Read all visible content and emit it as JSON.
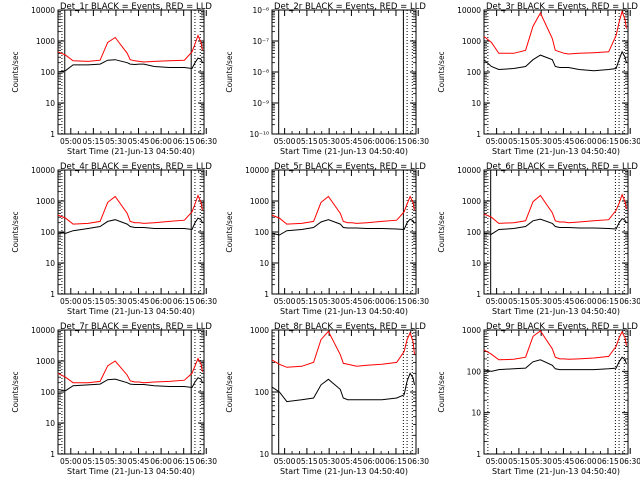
{
  "figure": {
    "xtick_labels": [
      "05:00",
      "05:15",
      "05:30",
      "05:45",
      "06:00",
      "06:15",
      "06:30"
    ],
    "xlabel": "Start Time (21-Jun-13 04:50:40)",
    "ylabel": "Counts/sec",
    "colors": {
      "events": "#000000",
      "lld": "#ff0000",
      "axes": "#000000",
      "background": "#ffffff"
    }
  },
  "chart_data": [
    {
      "type": "line",
      "title": "Det_1r BLACK = Events, RED = LLD",
      "yscale": "log",
      "ylim": [
        1,
        10000
      ],
      "ytick_labels": [
        "1",
        "10",
        "100",
        "1000",
        "10000"
      ],
      "x_minutes": [
        0,
        5,
        10,
        20,
        28,
        33,
        38,
        46,
        48,
        51,
        54,
        57,
        64,
        74,
        84,
        89,
        91,
        93,
        95,
        96
      ],
      "series": [
        {
          "key": "events",
          "color": "#000000",
          "values": [
            100,
            110,
            170,
            170,
            180,
            240,
            250,
            200,
            180,
            175,
            180,
            180,
            150,
            140,
            140,
            130,
            200,
            280,
            260,
            200
          ]
        },
        {
          "key": "lld",
          "color": "#ff0000",
          "values": [
            450,
            350,
            230,
            220,
            240,
            900,
            1300,
            400,
            250,
            230,
            220,
            210,
            220,
            230,
            240,
            450,
            800,
            1500,
            900,
            500
          ]
        }
      ],
      "vlines_solid": [
        4.5,
        88.5
      ],
      "vlines_dotted": [
        2.6,
        91,
        94.5
      ]
    },
    {
      "type": "line",
      "title": "Det_2r BLACK = Events, RED = LLD",
      "yscale": "log",
      "ylim": [
        1e-10,
        1e-06
      ],
      "ytick_labels": [
        "10⁻¹⁰",
        "10⁻⁹",
        "10⁻⁸",
        "10⁻⁷",
        "10⁻⁶"
      ],
      "x_minutes": [],
      "series": [],
      "vlines_solid": [
        4.5,
        88.5
      ],
      "vlines_dotted": [
        91,
        94.5
      ]
    },
    {
      "type": "line",
      "title": "Det_3r BLACK = Events, RED = LLD",
      "yscale": "log",
      "ylim": [
        1,
        10000
      ],
      "ytick_labels": [
        "1",
        "10",
        "100",
        "1000",
        "10000"
      ],
      "x_minutes": [
        0,
        5,
        10,
        20,
        28,
        33,
        38,
        46,
        48,
        51,
        54,
        57,
        64,
        74,
        84,
        89,
        91,
        93,
        95,
        96
      ],
      "series": [
        {
          "key": "events",
          "color": "#000000",
          "values": [
            250,
            150,
            120,
            130,
            150,
            250,
            350,
            250,
            150,
            140,
            140,
            140,
            120,
            110,
            120,
            130,
            250,
            450,
            300,
            200
          ]
        },
        {
          "key": "lld",
          "color": "#ff0000",
          "values": [
            1400,
            900,
            400,
            400,
            500,
            3000,
            8000,
            1200,
            500,
            450,
            400,
            380,
            400,
            420,
            450,
            1500,
            4000,
            9000,
            5000,
            2500
          ]
        }
      ],
      "vlines_solid": [],
      "vlines_dotted": [
        2.6,
        88.5,
        91,
        94.5
      ]
    },
    {
      "type": "line",
      "title": "Det_4r BLACK = Events, RED = LLD",
      "yscale": "log",
      "ylim": [
        1,
        10000
      ],
      "ytick_labels": [
        "1",
        "10",
        "100",
        "1000",
        "10000"
      ],
      "x_minutes": [
        0,
        5,
        10,
        20,
        28,
        33,
        38,
        46,
        48,
        51,
        54,
        57,
        64,
        74,
        84,
        89,
        91,
        93,
        95,
        96
      ],
      "series": [
        {
          "key": "events",
          "color": "#000000",
          "values": [
            100,
            90,
            110,
            130,
            150,
            220,
            250,
            180,
            150,
            140,
            140,
            140,
            130,
            130,
            130,
            120,
            200,
            280,
            250,
            200
          ]
        },
        {
          "key": "lld",
          "color": "#ff0000",
          "values": [
            350,
            280,
            180,
            190,
            220,
            900,
            1400,
            400,
            220,
            200,
            200,
            190,
            200,
            220,
            240,
            450,
            800,
            1500,
            900,
            500
          ]
        }
      ],
      "vlines_solid": [
        4.5,
        88.5
      ],
      "vlines_dotted": [
        2.6,
        91,
        94.5
      ]
    },
    {
      "type": "line",
      "title": "Det_5r BLACK = Events, RED = LLD",
      "yscale": "log",
      "ylim": [
        1,
        10000
      ],
      "ytick_labels": [
        "1",
        "10",
        "100",
        "1000",
        "10000"
      ],
      "x_minutes": [
        0,
        5,
        10,
        20,
        28,
        33,
        38,
        46,
        48,
        51,
        54,
        57,
        64,
        74,
        84,
        89,
        91,
        93,
        95,
        96
      ],
      "series": [
        {
          "key": "events",
          "color": "#000000",
          "values": [
            90,
            80,
            110,
            120,
            140,
            210,
            250,
            180,
            140,
            135,
            135,
            135,
            130,
            130,
            125,
            120,
            200,
            260,
            230,
            190
          ]
        },
        {
          "key": "lld",
          "color": "#ff0000",
          "values": [
            350,
            280,
            180,
            190,
            220,
            900,
            1400,
            400,
            220,
            200,
            200,
            190,
            200,
            220,
            240,
            450,
            800,
            1400,
            900,
            500
          ]
        }
      ],
      "vlines_solid": [
        4.5,
        88.5
      ],
      "vlines_dotted": [
        91,
        94.5
      ]
    },
    {
      "type": "line",
      "title": "Det_6r BLACK = Events, RED = LLD",
      "yscale": "log",
      "ylim": [
        1,
        10000
      ],
      "ytick_labels": [
        "1",
        "10",
        "100",
        "1000",
        "10000"
      ],
      "x_minutes": [
        0,
        5,
        10,
        20,
        28,
        33,
        38,
        46,
        48,
        51,
        54,
        57,
        64,
        74,
        84,
        89,
        91,
        93,
        95,
        96
      ],
      "series": [
        {
          "key": "events",
          "color": "#000000",
          "values": [
            90,
            85,
            120,
            130,
            150,
            230,
            260,
            190,
            150,
            140,
            140,
            140,
            135,
            135,
            130,
            125,
            200,
            270,
            240,
            200
          ]
        },
        {
          "key": "lld",
          "color": "#ff0000",
          "values": [
            380,
            300,
            190,
            200,
            230,
            950,
            1500,
            420,
            230,
            210,
            210,
            200,
            210,
            230,
            250,
            500,
            850,
            1600,
            950,
            550
          ]
        }
      ],
      "vlines_solid": [
        4.5
      ],
      "vlines_dotted": [
        2.6,
        88.5,
        91,
        94.5
      ]
    },
    {
      "type": "line",
      "title": "Det_7r BLACK = Events, RED = LLD",
      "yscale": "log",
      "ylim": [
        1,
        10000
      ],
      "ytick_labels": [
        "1",
        "10",
        "100",
        "1000",
        "10000"
      ],
      "x_minutes": [
        0,
        5,
        10,
        20,
        28,
        33,
        38,
        46,
        48,
        51,
        54,
        57,
        64,
        74,
        84,
        89,
        91,
        93,
        95,
        96
      ],
      "series": [
        {
          "key": "events",
          "color": "#000000",
          "values": [
            120,
            110,
            160,
            170,
            180,
            250,
            260,
            200,
            180,
            175,
            175,
            175,
            160,
            150,
            150,
            140,
            210,
            290,
            260,
            200
          ]
        },
        {
          "key": "lld",
          "color": "#ff0000",
          "values": [
            400,
            300,
            200,
            200,
            220,
            700,
            1000,
            350,
            230,
            210,
            210,
            200,
            210,
            220,
            240,
            400,
            700,
            1200,
            800,
            450
          ]
        }
      ],
      "vlines_solid": [
        4.5,
        88.5
      ],
      "vlines_dotted": [
        2.6,
        91,
        94.5
      ]
    },
    {
      "type": "line",
      "title": "Det_8r BLACK = Events, RED = LLD",
      "yscale": "log",
      "ylim": [
        10,
        1000
      ],
      "ytick_labels": [
        "10",
        "100",
        "1000"
      ],
      "x_minutes": [
        0,
        5,
        10,
        20,
        28,
        33,
        38,
        46,
        48,
        51,
        54,
        57,
        64,
        74,
        84,
        89,
        91,
        93,
        95,
        96
      ],
      "series": [
        {
          "key": "events",
          "color": "#000000",
          "values": [
            120,
            100,
            70,
            75,
            80,
            130,
            160,
            110,
            80,
            75,
            75,
            75,
            75,
            75,
            80,
            90,
            150,
            200,
            170,
            130
          ]
        },
        {
          "key": "lld",
          "color": "#ff0000",
          "values": [
            330,
            280,
            250,
            260,
            300,
            700,
            950,
            400,
            290,
            280,
            270,
            260,
            270,
            280,
            300,
            450,
            700,
            900,
            650,
            400
          ]
        }
      ],
      "vlines_solid": [
        4.5
      ],
      "vlines_dotted": [
        88.5,
        91,
        94.5
      ]
    },
    {
      "type": "line",
      "title": "Det_9r BLACK = Events, RED = LLD",
      "yscale": "log",
      "ylim": [
        1,
        1000
      ],
      "ytick_labels": [
        "1",
        "10",
        "100",
        "1000"
      ],
      "x_minutes": [
        0,
        5,
        10,
        20,
        28,
        33,
        38,
        46,
        48,
        51,
        54,
        57,
        64,
        74,
        84,
        89,
        91,
        93,
        95,
        96
      ],
      "series": [
        {
          "key": "events",
          "color": "#000000",
          "values": [
            110,
            100,
            110,
            115,
            120,
            170,
            190,
            140,
            115,
            110,
            110,
            110,
            110,
            110,
            115,
            120,
            170,
            220,
            190,
            150
          ]
        },
        {
          "key": "lld",
          "color": "#ff0000",
          "values": [
            330,
            260,
            190,
            195,
            220,
            700,
            950,
            350,
            220,
            200,
            200,
            195,
            200,
            210,
            230,
            400,
            650,
            900,
            650,
            420
          ]
        }
      ],
      "vlines_solid": [],
      "vlines_dotted": [
        2.6,
        88.5,
        91,
        94.5
      ]
    }
  ]
}
